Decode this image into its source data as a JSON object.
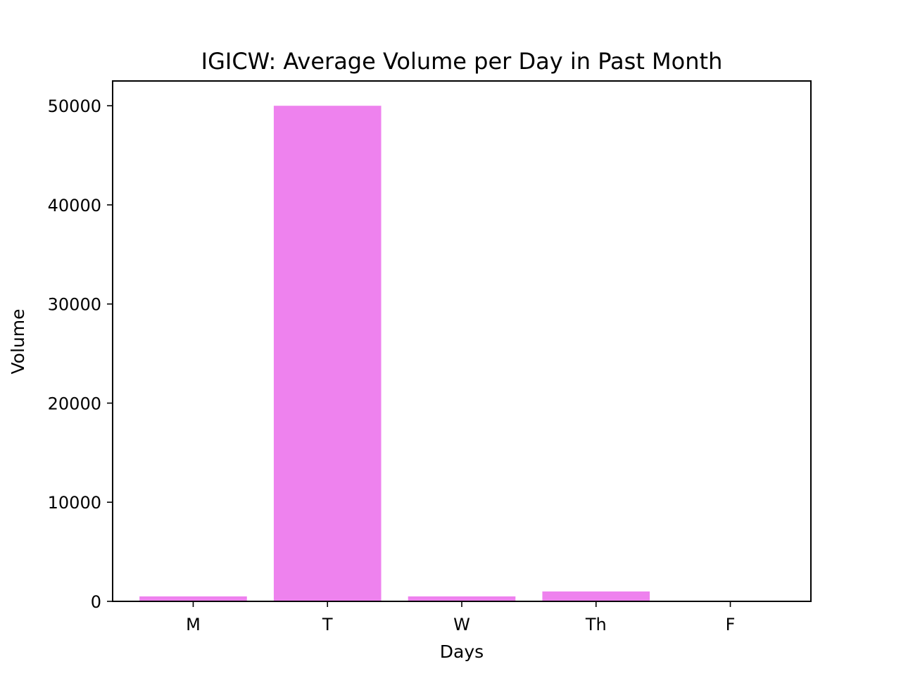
{
  "chart_data": {
    "type": "bar",
    "title": "IGICW: Average Volume per Day in Past Month",
    "xlabel": "Days",
    "ylabel": "Volume",
    "categories": [
      "M",
      "T",
      "W",
      "Th",
      "F"
    ],
    "values": [
      500,
      50000,
      500,
      1000,
      0
    ],
    "ylim": [
      0,
      52500
    ],
    "yticks": [
      0,
      10000,
      20000,
      30000,
      40000,
      50000
    ],
    "grid": false,
    "legend": "none",
    "bar_color": "#ee82ee"
  }
}
